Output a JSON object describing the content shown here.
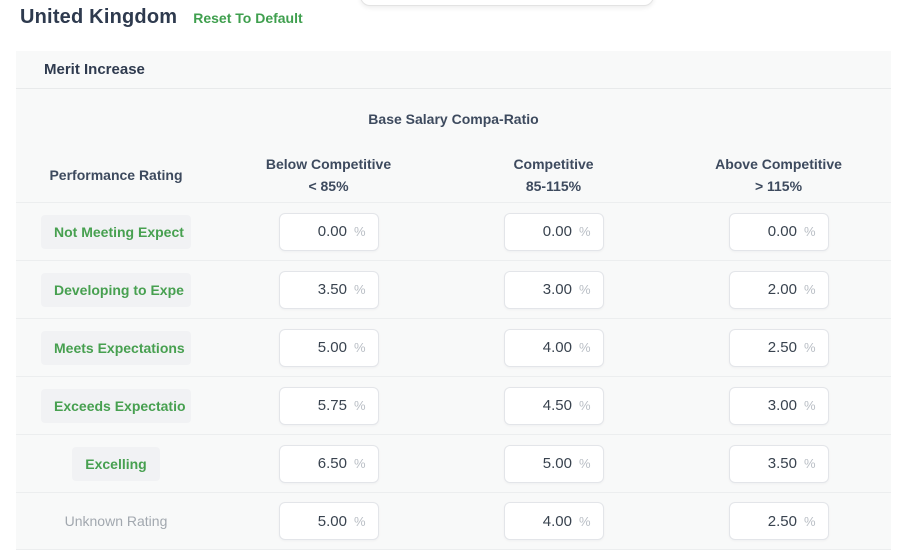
{
  "page": {
    "title": "United Kingdom",
    "reset_label": "Reset To Default"
  },
  "panel": {
    "title": "Merit Increase",
    "group_header": "Base Salary Compa-Ratio",
    "unit_suffix": "%",
    "columns": [
      {
        "label": "Performance Rating",
        "sub": ""
      },
      {
        "label": "Below Competitive",
        "sub": "< 85%"
      },
      {
        "label": "Competitive",
        "sub": "85-115%"
      },
      {
        "label": "Above Competitive",
        "sub": "> 115%"
      }
    ],
    "rows": [
      {
        "rating": "Not Meeting Expect",
        "muted": false,
        "values": [
          "0.00",
          "0.00",
          "0.00"
        ]
      },
      {
        "rating": "Developing to Expe",
        "muted": false,
        "values": [
          "3.50",
          "3.00",
          "2.00"
        ]
      },
      {
        "rating": "Meets Expectations",
        "muted": false,
        "values": [
          "5.00",
          "4.00",
          "2.50"
        ]
      },
      {
        "rating": "Exceeds Expectatio",
        "muted": false,
        "values": [
          "5.75",
          "4.50",
          "3.00"
        ]
      },
      {
        "rating": "Excelling",
        "muted": false,
        "values": [
          "6.50",
          "5.00",
          "3.50"
        ]
      },
      {
        "rating": "Unknown Rating",
        "muted": true,
        "values": [
          "5.00",
          "4.00",
          "2.50"
        ]
      }
    ]
  },
  "colors": {
    "accent_green": "#3f9f4e",
    "heading_navy": "#2e3a4e",
    "header_text": "#3d4a5e",
    "panel_background": "#f8f9f9",
    "chip_background": "#f1f2f4",
    "input_border": "#e3e5e9",
    "muted_text": "#a2a8af",
    "percent_suffix_text": "#b9bec5"
  }
}
